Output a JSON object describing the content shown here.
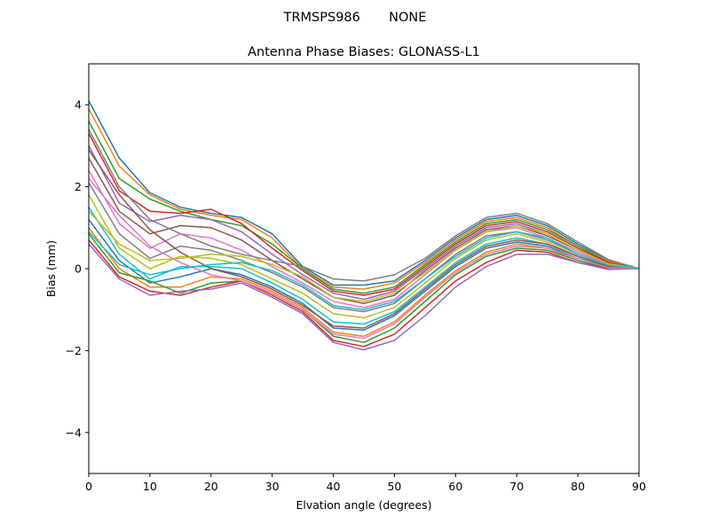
{
  "figure": {
    "suptitle": "TRMSPS986       NONE"
  },
  "chart_data": {
    "type": "line",
    "title": "Antenna Phase Biases: GLONASS-L1",
    "xlabel": "Elvation angle (degrees)",
    "ylabel": "Bias (mm)",
    "xlim": [
      0,
      90
    ],
    "ylim": [
      -5,
      5
    ],
    "xticks": [
      0,
      10,
      20,
      30,
      40,
      50,
      60,
      70,
      80,
      90
    ],
    "yticks": [
      -4,
      -2,
      0,
      2,
      4
    ],
    "ytick_labels": [
      "−4",
      "−2",
      "0",
      "2",
      "4"
    ],
    "grid": false,
    "legend": "none",
    "x": [
      0,
      5,
      10,
      15,
      20,
      25,
      30,
      35,
      40,
      45,
      50,
      55,
      60,
      65,
      70,
      75,
      80,
      85,
      90
    ],
    "series": [
      {
        "color": "#1f77b4",
        "values": [
          4.1,
          2.7,
          1.85,
          1.5,
          1.35,
          1.25,
          0.85,
          0.05,
          -0.4,
          -0.4,
          -0.3,
          0.2,
          0.75,
          1.2,
          1.3,
          1.05,
          0.6,
          0.2,
          0.0
        ]
      },
      {
        "color": "#ff7f0e",
        "values": [
          3.9,
          2.5,
          1.8,
          1.45,
          1.3,
          1.2,
          0.75,
          0.0,
          -0.45,
          -0.5,
          -0.35,
          0.15,
          0.7,
          1.15,
          1.25,
          1.0,
          0.55,
          0.18,
          0.0
        ]
      },
      {
        "color": "#2ca02c",
        "values": [
          3.6,
          2.2,
          1.7,
          1.4,
          1.2,
          1.05,
          0.6,
          0.0,
          -0.5,
          -0.6,
          -0.45,
          0.1,
          0.65,
          1.1,
          1.2,
          0.95,
          0.55,
          0.15,
          0.0
        ]
      },
      {
        "color": "#d62728",
        "values": [
          3.3,
          1.9,
          1.4,
          1.35,
          1.45,
          1.1,
          0.5,
          -0.05,
          -0.55,
          -0.65,
          -0.5,
          0.05,
          0.6,
          1.05,
          1.15,
          0.9,
          0.5,
          0.15,
          0.0
        ]
      },
      {
        "color": "#9467bd",
        "values": [
          3.0,
          1.6,
          1.15,
          1.3,
          1.2,
          0.9,
          0.35,
          -0.15,
          -0.6,
          -0.75,
          -0.55,
          0.0,
          0.55,
          1.0,
          1.1,
          0.85,
          0.45,
          0.12,
          0.0
        ]
      },
      {
        "color": "#8c564b",
        "values": [
          2.7,
          1.4,
          0.85,
          1.05,
          1.0,
          0.7,
          0.2,
          -0.25,
          -0.7,
          -0.85,
          -0.65,
          -0.05,
          0.5,
          0.95,
          1.05,
          0.8,
          0.45,
          0.12,
          0.0
        ]
      },
      {
        "color": "#e377c2",
        "values": [
          2.4,
          1.1,
          0.5,
          0.85,
          0.75,
          0.45,
          0.05,
          -0.35,
          -0.8,
          -0.95,
          -0.75,
          -0.15,
          0.45,
          0.9,
          1.0,
          0.75,
          0.4,
          0.1,
          0.0
        ]
      },
      {
        "color": "#7f7f7f",
        "values": [
          2.1,
          0.85,
          0.25,
          0.55,
          0.45,
          0.2,
          -0.1,
          -0.45,
          -0.95,
          -1.05,
          -0.85,
          -0.25,
          0.35,
          0.8,
          0.9,
          0.7,
          0.35,
          0.08,
          0.0
        ]
      },
      {
        "color": "#bcbd22",
        "values": [
          1.8,
          0.5,
          0.0,
          0.3,
          0.25,
          0.1,
          -0.25,
          -0.6,
          -1.1,
          -1.2,
          -0.95,
          -0.35,
          0.25,
          0.7,
          0.85,
          0.65,
          0.3,
          0.05,
          0.0
        ]
      },
      {
        "color": "#17becf",
        "values": [
          1.5,
          0.35,
          -0.25,
          0.05,
          0.05,
          0.0,
          -0.35,
          -0.75,
          -1.3,
          -1.35,
          -1.05,
          -0.45,
          0.15,
          0.6,
          0.75,
          0.6,
          0.3,
          0.05,
          0.0
        ]
      },
      {
        "color": "#1f77b4",
        "values": [
          1.2,
          0.2,
          -0.35,
          -0.2,
          0.0,
          -0.15,
          -0.45,
          -0.85,
          -1.45,
          -1.5,
          -1.15,
          -0.55,
          0.05,
          0.5,
          0.65,
          0.55,
          0.25,
          0.03,
          0.0
        ]
      },
      {
        "color": "#ff7f0e",
        "values": [
          1.0,
          0.0,
          -0.45,
          -0.45,
          -0.2,
          -0.25,
          -0.55,
          -0.95,
          -1.55,
          -1.65,
          -1.3,
          -0.65,
          -0.05,
          0.4,
          0.6,
          0.5,
          0.2,
          0.02,
          0.0
        ]
      },
      {
        "color": "#2ca02c",
        "values": [
          0.85,
          -0.1,
          -0.3,
          -0.6,
          -0.35,
          -0.3,
          -0.6,
          -1.0,
          -1.65,
          -1.8,
          -1.45,
          -0.8,
          -0.15,
          0.3,
          0.5,
          0.45,
          0.2,
          0.0,
          0.0
        ]
      },
      {
        "color": "#d62728",
        "values": [
          0.7,
          -0.2,
          -0.55,
          -0.65,
          -0.45,
          -0.3,
          -0.65,
          -1.05,
          -1.75,
          -1.9,
          -1.6,
          -0.95,
          -0.3,
          0.15,
          0.45,
          0.4,
          0.15,
          0.0,
          0.0
        ]
      },
      {
        "color": "#9467bd",
        "values": [
          0.6,
          -0.25,
          -0.65,
          -0.55,
          -0.5,
          -0.35,
          -0.7,
          -1.1,
          -1.8,
          -1.98,
          -1.75,
          -1.15,
          -0.45,
          0.05,
          0.35,
          0.35,
          0.15,
          -0.02,
          0.0
        ]
      },
      {
        "color": "#8c564b",
        "values": [
          2.9,
          1.8,
          0.95,
          0.4,
          0.0,
          -0.2,
          -0.5,
          -0.9,
          -1.4,
          -1.45,
          -1.1,
          -0.5,
          0.1,
          0.55,
          0.7,
          0.6,
          0.3,
          0.05,
          0.0
        ]
      },
      {
        "color": "#e377c2",
        "values": [
          2.2,
          1.3,
          0.55,
          0.15,
          -0.15,
          -0.3,
          -0.6,
          -1.0,
          -1.6,
          -1.7,
          -1.35,
          -0.7,
          -0.1,
          0.35,
          0.55,
          0.5,
          0.25,
          0.02,
          0.0
        ]
      },
      {
        "color": "#7f7f7f",
        "values": [
          3.4,
          2.0,
          1.2,
          0.85,
          0.55,
          0.35,
          0.2,
          0.05,
          -0.25,
          -0.3,
          -0.15,
          0.25,
          0.8,
          1.25,
          1.35,
          1.1,
          0.65,
          0.22,
          0.0
        ]
      },
      {
        "color": "#bcbd22",
        "values": [
          1.4,
          0.6,
          0.2,
          0.25,
          0.35,
          0.3,
          0.1,
          -0.2,
          -0.7,
          -0.8,
          -0.6,
          -0.1,
          0.45,
          0.9,
          1.05,
          0.85,
          0.45,
          0.12,
          0.0
        ]
      },
      {
        "color": "#17becf",
        "values": [
          0.9,
          0.1,
          -0.15,
          0.0,
          0.1,
          0.15,
          -0.05,
          -0.4,
          -0.9,
          -1.0,
          -0.8,
          -0.25,
          0.3,
          0.75,
          0.9,
          0.75,
          0.35,
          0.08,
          0.0
        ]
      }
    ]
  }
}
